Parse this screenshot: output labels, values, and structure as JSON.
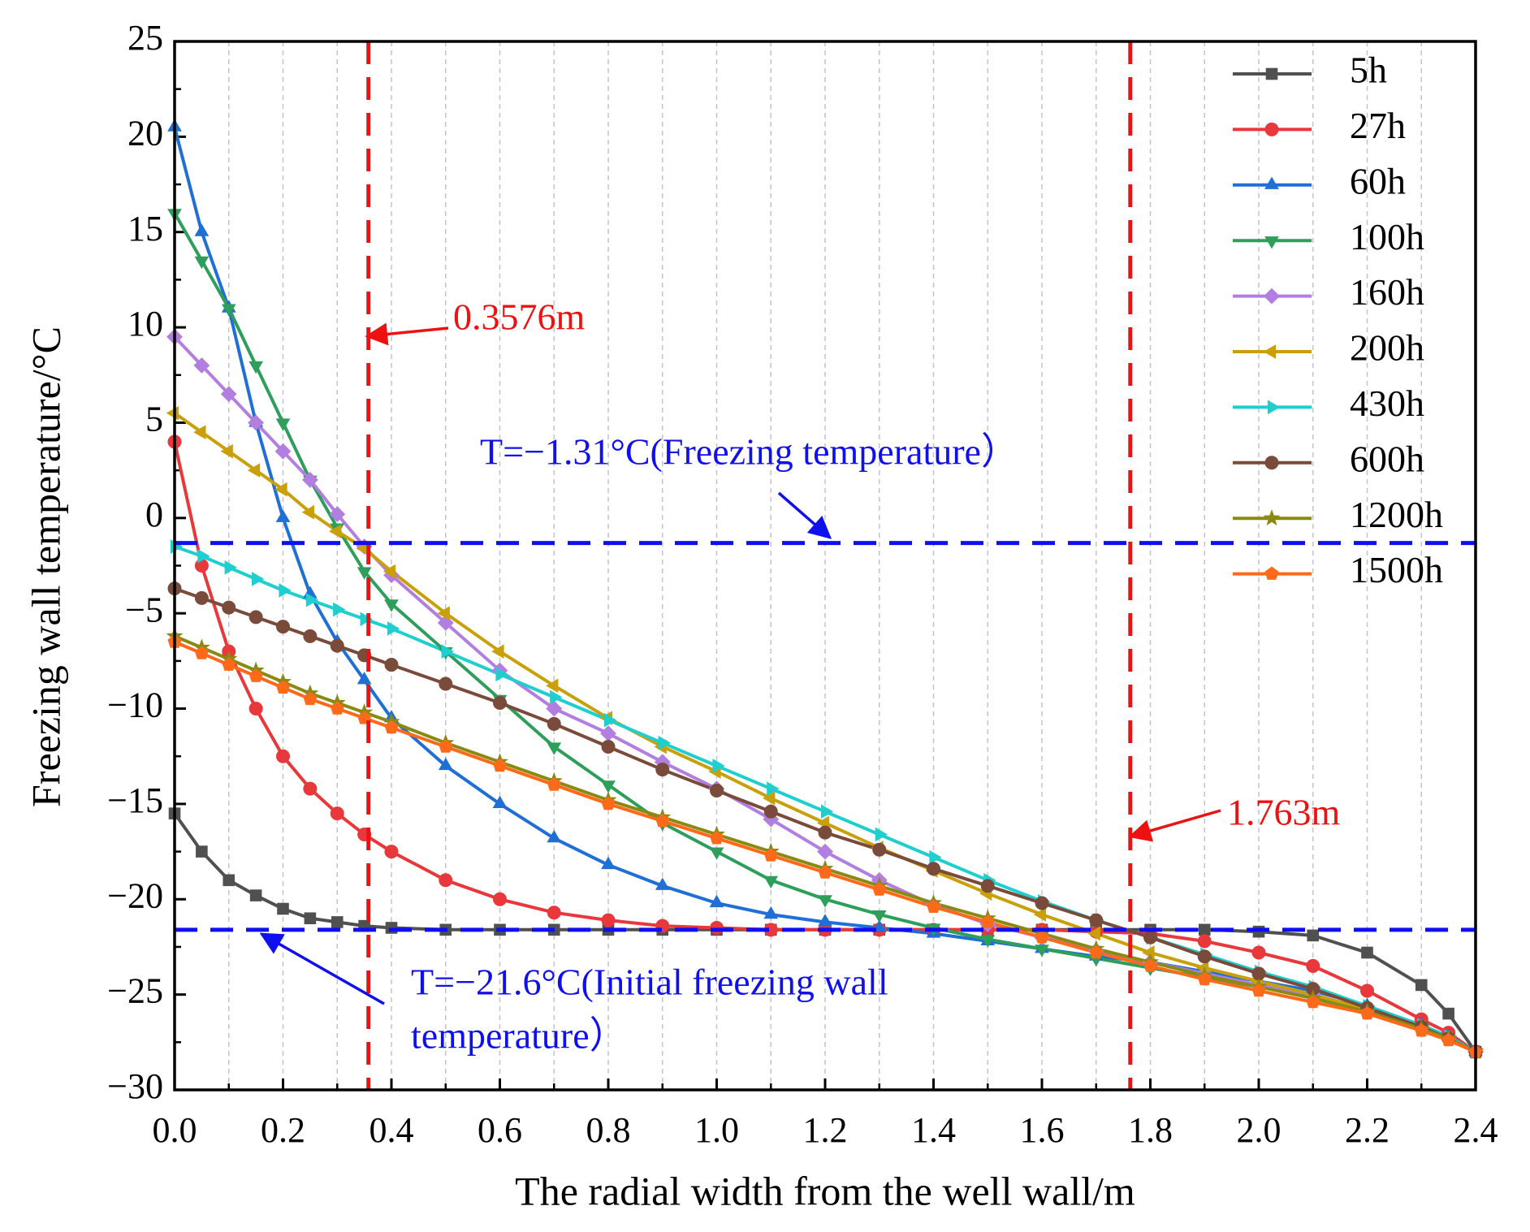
{
  "chart_data": {
    "type": "line",
    "xlabel": "The radial width from the well wall/m",
    "ylabel": "Freezing wall temperature/°C",
    "xlim": [
      0,
      2.4
    ],
    "ylim": [
      -30,
      25
    ],
    "xticks": [
      {
        "value": 0,
        "label": "0.0"
      },
      0.2,
      0.4,
      0.6,
      0.8,
      {
        "value": 1,
        "label": "1.0"
      },
      1.2,
      1.4,
      1.6,
      1.8,
      {
        "value": 2,
        "label": "2.0"
      },
      2.2,
      2.4
    ],
    "x_minor_ticks": [
      0.1,
      0.3,
      0.5,
      0.7,
      0.9,
      1.1,
      1.3,
      1.5,
      1.7,
      1.9,
      2.1,
      2.3
    ],
    "yticks": [
      {
        "value": -30,
        "label": "−30"
      },
      {
        "value": -25,
        "label": "−25"
      },
      {
        "value": -20,
        "label": "−20"
      },
      {
        "value": -15,
        "label": "−15"
      },
      {
        "value": -10,
        "label": "−10"
      },
      {
        "value": -5,
        "label": "−5"
      },
      0,
      5,
      10,
      15,
      20,
      25
    ],
    "y_minor_ticks": [
      -27.5,
      -22.5,
      -17.5,
      -12.5,
      -7.5,
      -2.5,
      2.5,
      7.5,
      12.5,
      17.5,
      22.5
    ],
    "grid": "x",
    "legend": "upper right",
    "x": [
      0,
      0.05,
      0.1,
      0.15,
      0.2,
      0.25,
      0.3,
      0.35,
      0.4,
      0.5,
      0.6,
      0.7,
      0.8,
      0.9,
      1.0,
      1.1,
      1.2,
      1.3,
      1.4,
      1.5,
      1.6,
      1.7,
      1.8,
      1.9,
      2.0,
      2.1,
      2.2,
      2.3,
      2.35,
      2.4
    ],
    "series": [
      {
        "name": "5h",
        "color": "#505050",
        "marker": "square",
        "values": [
          -15.5,
          -17.5,
          -19,
          -19.8,
          -20.5,
          -21,
          -21.2,
          -21.4,
          -21.5,
          -21.6,
          -21.6,
          -21.6,
          -21.6,
          -21.6,
          -21.6,
          -21.6,
          -21.6,
          -21.6,
          -21.6,
          -21.6,
          -21.6,
          -21.6,
          -21.6,
          -21.6,
          -21.7,
          -21.9,
          -22.8,
          -24.5,
          -26,
          -28
        ]
      },
      {
        "name": "27h",
        "color": "#e8383b",
        "marker": "circle",
        "values": [
          4,
          -2.5,
          -7,
          -10,
          -12.5,
          -14.2,
          -15.5,
          -16.6,
          -17.5,
          -19,
          -20,
          -20.7,
          -21.1,
          -21.4,
          -21.5,
          -21.6,
          -21.6,
          -21.6,
          -21.6,
          -21.6,
          -21.6,
          -21.7,
          -21.8,
          -22.2,
          -22.8,
          -23.5,
          -24.8,
          -26.3,
          -27,
          -28
        ]
      },
      {
        "name": "60h",
        "color": "#1f6fd6",
        "marker": "triangle-up",
        "values": [
          20.5,
          15,
          11,
          5,
          0,
          -4,
          -6.5,
          -8.5,
          -10.5,
          -13,
          -15,
          -16.8,
          -18.2,
          -19.3,
          -20.2,
          -20.8,
          -21.2,
          -21.5,
          -21.8,
          -22.2,
          -22.6,
          -23,
          -23.3,
          -23.8,
          -24.3,
          -24.8,
          -25.6,
          -26.6,
          -27.2,
          -28
        ]
      },
      {
        "name": "100h",
        "color": "#2e9e5b",
        "marker": "triangle-down",
        "values": [
          16,
          13.5,
          11,
          8,
          5,
          2,
          -0.5,
          -2.8,
          -4.5,
          -7,
          -9.5,
          -12,
          -14,
          -16,
          -17.5,
          -19,
          -20,
          -20.8,
          -21.5,
          -22.1,
          -22.6,
          -23.1,
          -23.6,
          -24.1,
          -24.6,
          -25.1,
          -25.8,
          -26.7,
          -27.3,
          -28
        ]
      },
      {
        "name": "160h",
        "color": "#b27ee0",
        "marker": "diamond",
        "values": [
          9.5,
          8,
          6.5,
          5,
          3.5,
          2,
          0.2,
          -1.5,
          -3,
          -5.5,
          -8,
          -10,
          -11.3,
          -12.8,
          -14.2,
          -15.8,
          -17.5,
          -19,
          -20.3,
          -21.3,
          -22,
          -22.7,
          -23.3,
          -23.9,
          -24.5,
          -25,
          -25.8,
          -26.7,
          -27.3,
          -28
        ]
      },
      {
        "name": "200h",
        "color": "#c9a00a",
        "marker": "triangle-left",
        "values": [
          5.5,
          4.5,
          3.5,
          2.5,
          1.5,
          0.3,
          -0.7,
          -1.6,
          -2.8,
          -5,
          -7,
          -8.8,
          -10.5,
          -12,
          -13.3,
          -14.7,
          -16,
          -17.3,
          -18.5,
          -19.7,
          -20.8,
          -21.8,
          -22.8,
          -23.6,
          -24.3,
          -25,
          -25.8,
          -26.7,
          -27.3,
          -28
        ]
      },
      {
        "name": "430h",
        "color": "#1fcfd0",
        "marker": "triangle-right",
        "values": [
          -1.5,
          -2,
          -2.6,
          -3.2,
          -3.8,
          -4.3,
          -4.8,
          -5.3,
          -5.8,
          -7,
          -8.2,
          -9.4,
          -10.6,
          -11.8,
          -13,
          -14.2,
          -15.4,
          -16.6,
          -17.8,
          -19,
          -20.1,
          -21.1,
          -22,
          -22.9,
          -23.8,
          -24.6,
          -25.6,
          -26.6,
          -27.2,
          -28
        ]
      },
      {
        "name": "600h",
        "color": "#7a4a3a",
        "marker": "circle",
        "values": [
          -3.7,
          -4.2,
          -4.7,
          -5.2,
          -5.7,
          -6.2,
          -6.7,
          -7.2,
          -7.7,
          -8.7,
          -9.7,
          -10.8,
          -12,
          -13.2,
          -14.3,
          -15.4,
          -16.5,
          -17.4,
          -18.4,
          -19.3,
          -20.2,
          -21.1,
          -22,
          -23,
          -23.9,
          -24.7,
          -25.7,
          -26.7,
          -27.3,
          -28
        ]
      },
      {
        "name": "1200h",
        "color": "#8a8a12",
        "marker": "star",
        "values": [
          -6.2,
          -6.8,
          -7.4,
          -8,
          -8.6,
          -9.2,
          -9.7,
          -10.2,
          -10.7,
          -11.8,
          -12.8,
          -13.8,
          -14.8,
          -15.7,
          -16.6,
          -17.5,
          -18.4,
          -19.3,
          -20.2,
          -21,
          -21.8,
          -22.6,
          -23.3,
          -24,
          -24.6,
          -25.2,
          -25.9,
          -26.8,
          -27.3,
          -28
        ]
      },
      {
        "name": "1500h",
        "color": "#ff6a1a",
        "marker": "pentagon",
        "values": [
          -6.5,
          -7.1,
          -7.7,
          -8.3,
          -8.9,
          -9.5,
          -10,
          -10.5,
          -11,
          -12,
          -13,
          -14,
          -15,
          -15.9,
          -16.8,
          -17.7,
          -18.6,
          -19.5,
          -20.4,
          -21.2,
          -22,
          -22.8,
          -23.5,
          -24.2,
          -24.8,
          -25.4,
          -26,
          -26.9,
          -27.4,
          -28
        ]
      }
    ],
    "reference_lines": [
      {
        "axis": "x",
        "value": 0.3576,
        "color": "#ee1111",
        "label": "0.3576m"
      },
      {
        "axis": "x",
        "value": 1.763,
        "color": "#ee1111",
        "label": "1.763m"
      },
      {
        "axis": "y",
        "value": -1.31,
        "color": "#1010ee",
        "label": "T=−1.31°C(Freezing temperature）"
      },
      {
        "axis": "y",
        "value": -21.6,
        "color": "#1010ee",
        "label": [
          "T=−21.6°C(Initial freezing wall",
          "temperature）"
        ]
      }
    ]
  }
}
